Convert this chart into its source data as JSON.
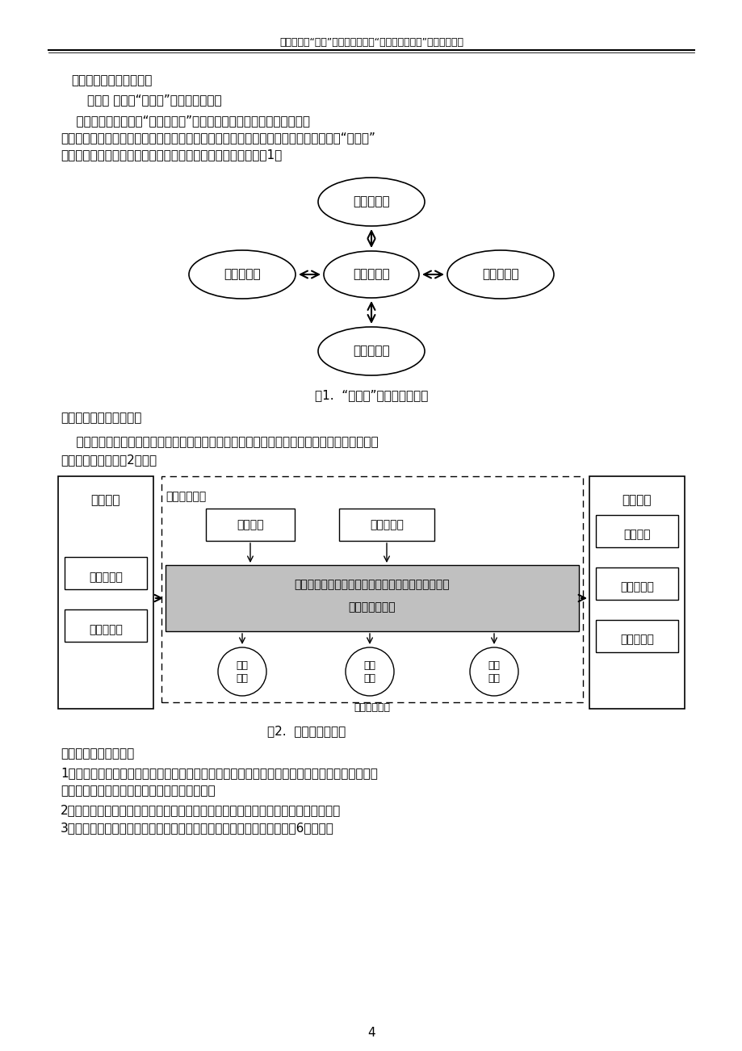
{
  "header_text": "中央电教馆“十五”规划课题子课题“数字化学校研究”课题研究报告",
  "section_title": "七、课题研究的主要成果",
  "sub1": "（一） 构建了“十字星”数字化学校模型",
  "body1_l1": "    数字化学校建设是以“数字化校园”概念为基础的教育信息化工程，通过",
  "body1_l2": "校园网的设施建设和教育应用功能开发，构建一个集教学、科研、管理、德育为一体的“十字星”",
  "body1_l3": "数字化学校模型，最终实现教育过程的全面信息化。其模型如图1：",
  "fig1_caption": "图1.  “十字星”数字化学校模型",
  "para_framework": "数字化学校的框架如下：",
  "para_info_l1": "    在数字化学校的建设中，信息化教育教学环境的建设应该置于核心地位，一个功能比较完善的",
  "para_info_l2": "信息化教育环境如图2所示。",
  "fig2_caption": "图2.  教学数字化框架",
  "resource_title": "教育资源体系是重点：",
  "resource_1a": "1、校内资源：教材、计算机室、多媒体教室、学校新课程研究机构、学生实验室、学校图书馆、",
  "resource_1b": "广播站、书报杂志、录音录像、光盘、网络等；",
  "resource_2": "2、社会资源：网络、教育研究机构、区教研中心、科学馆、博物馆、社区、家长等。",
  "resource_3": "3、国际资源：适合我校教育教学实际情况的国外资料，如布鲁姆认知的6个阶段。",
  "page_num": "4",
  "bg": "#ffffff"
}
